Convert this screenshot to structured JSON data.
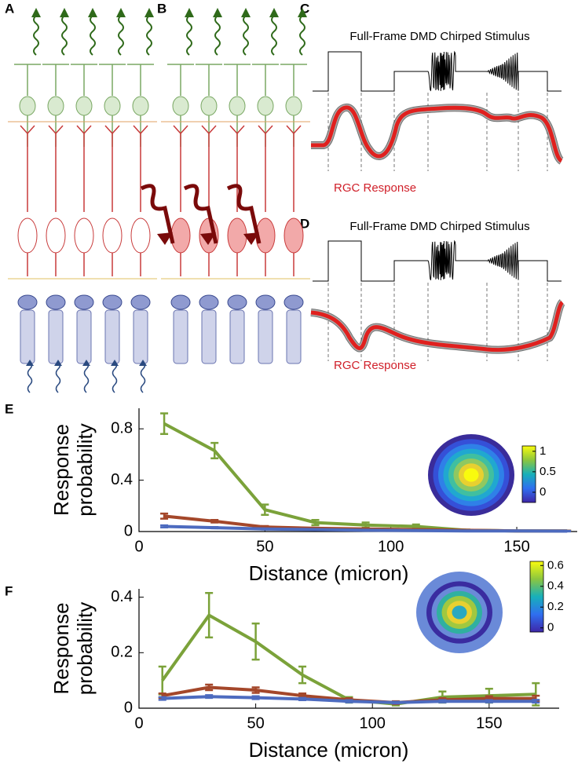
{
  "panel_labels": [
    "A",
    "B",
    "C",
    "D",
    "E",
    "F"
  ],
  "stimulus_panels": [
    {
      "title": "Full-Frame DMD Chirped Stimulus",
      "response_label": "RGC Response"
    },
    {
      "title": "Full-Frame DMD Chirped Stimulus",
      "response_label": "RGC Response"
    }
  ],
  "chart_data": [
    {
      "type": "line",
      "xlabel": "Distance (micron)",
      "ylabel": [
        "Response",
        "probability"
      ],
      "x": [
        10,
        30,
        50,
        70,
        90,
        110,
        130,
        150,
        170
      ],
      "xlim": [
        0,
        174
      ],
      "xticks": [
        0,
        50,
        100,
        150
      ],
      "ylim": [
        0,
        0.96
      ],
      "yticks": [
        0,
        0.4,
        0.8
      ],
      "series": [
        {
          "color": "#7ba23a",
          "values": [
            0.84,
            0.63,
            0.17,
            0.07,
            0.05,
            0.04,
            0.01,
            0.005,
            0.005
          ],
          "errors": [
            0.08,
            0.06,
            0.04,
            0.02,
            0.02,
            0.015,
            0.005,
            0.003,
            0.003
          ]
        },
        {
          "color": "#a4472a",
          "values": [
            0.12,
            0.08,
            0.035,
            0.025,
            0.02,
            0.015,
            0.01,
            0.005,
            0.005
          ],
          "errors": [
            0.02,
            0.01,
            0.008,
            0.005,
            0.005,
            0.004,
            0.003,
            0.002,
            0.002
          ]
        },
        {
          "color": "#4d6bbf",
          "values": [
            0.04,
            0.03,
            0.02,
            0.015,
            0.01,
            0.008,
            0.005,
            0.004,
            0.003
          ],
          "errors": [
            0.008,
            0.005,
            0.004,
            0.003,
            0.003,
            0.002,
            0.002,
            0.002,
            0.002
          ]
        }
      ],
      "colorbar": {
        "lim": [
          -0.25,
          1.13
        ],
        "ticks": [
          0,
          0.5,
          1
        ]
      }
    },
    {
      "type": "line",
      "xlabel": "Distance (micron)",
      "ylabel": [
        "Response",
        "probability"
      ],
      "x": [
        10,
        30,
        50,
        70,
        90,
        110,
        130,
        150,
        170
      ],
      "xlim": [
        0,
        180
      ],
      "xticks": [
        0,
        50,
        100,
        150
      ],
      "ylim": [
        0,
        0.43
      ],
      "yticks": [
        0,
        0.2,
        0.4
      ],
      "series": [
        {
          "color": "#7ba23a",
          "values": [
            0.1,
            0.335,
            0.24,
            0.12,
            0.03,
            0.015,
            0.04,
            0.045,
            0.05
          ],
          "errors": [
            0.05,
            0.08,
            0.065,
            0.03,
            0.01,
            0.005,
            0.02,
            0.025,
            0.04
          ]
        },
        {
          "color": "#a4472a",
          "values": [
            0.045,
            0.075,
            0.065,
            0.045,
            0.03,
            0.02,
            0.03,
            0.035,
            0.035
          ],
          "errors": [
            0.008,
            0.01,
            0.01,
            0.008,
            0.006,
            0.005,
            0.006,
            0.008,
            0.01
          ]
        },
        {
          "color": "#4d6bbf",
          "values": [
            0.035,
            0.042,
            0.038,
            0.033,
            0.025,
            0.02,
            0.025,
            0.025,
            0.025
          ],
          "errors": [
            0.005,
            0.005,
            0.005,
            0.004,
            0.004,
            0.003,
            0.004,
            0.004,
            0.005
          ]
        }
      ],
      "colorbar": {
        "lim": [
          -0.04,
          0.64
        ],
        "ticks": [
          0,
          0.2,
          0.4,
          0.6
        ]
      }
    }
  ]
}
